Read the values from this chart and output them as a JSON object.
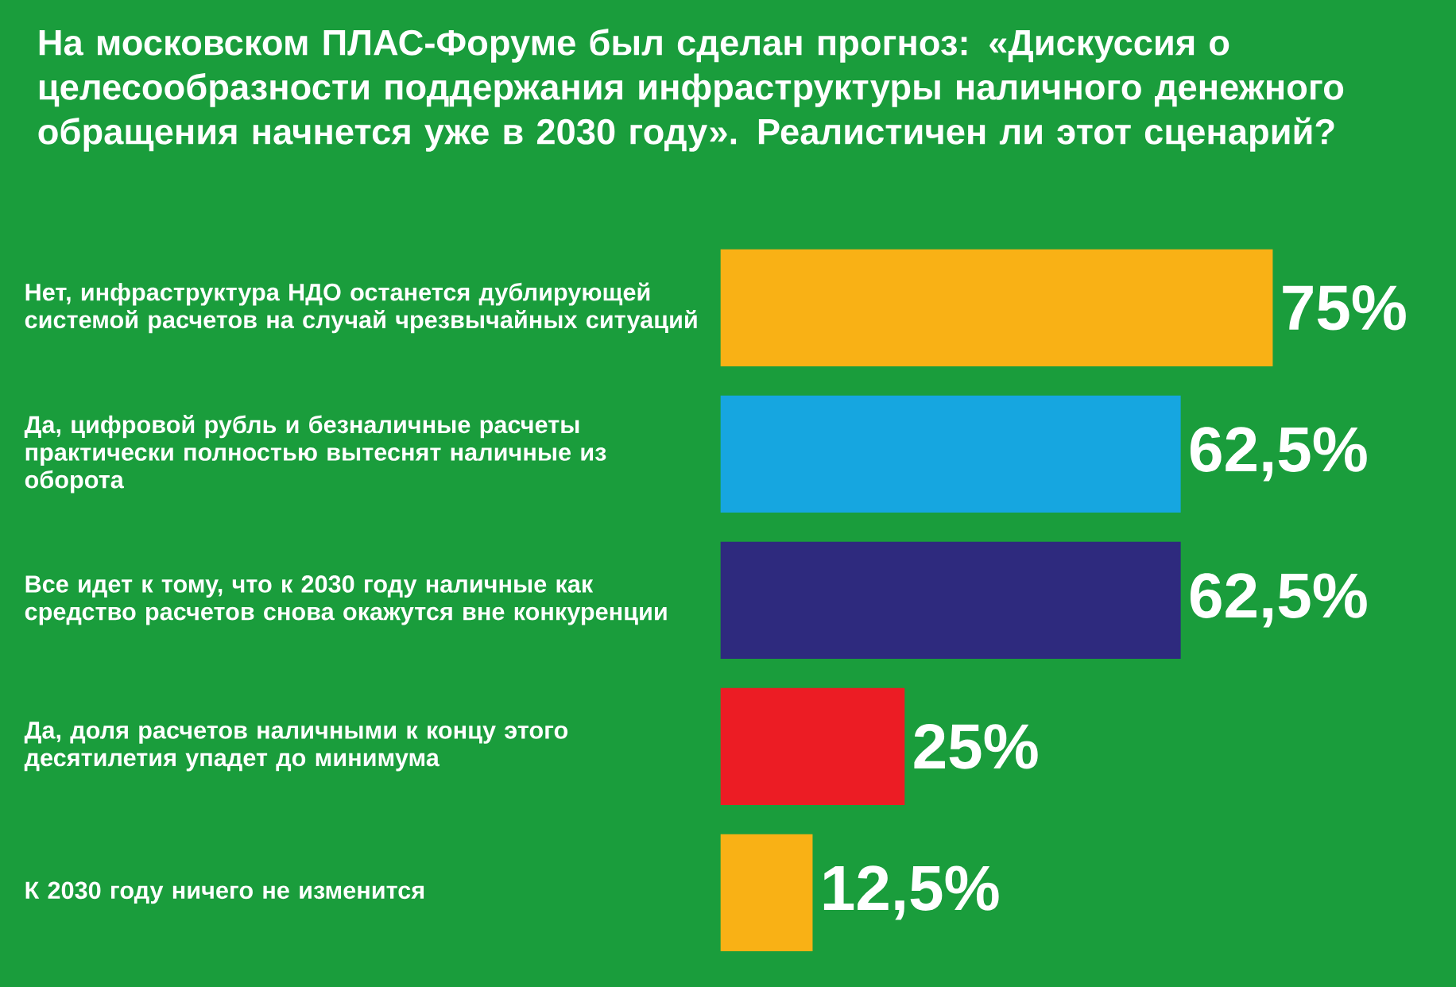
{
  "chart_data": {
    "type": "bar",
    "orientation": "horizontal",
    "title": "На московском ПЛАС-Форуме был сделан прогноз: «Дискуссия о целесообразности поддержания инфраструктуры наличного денежного обращения начнется уже в 2030 году». Реалистичен ли этот сценарий?",
    "categories": [
      "Нет, инфраструктура НДО останется дублирующей системой расчетов на случай чрезвычайных ситуаций",
      "Да, цифровой рубль и безналичные расчеты практически полностью вытеснят наличные из оборота",
      "Все идет к тому, что к 2030 году наличные как средство расчетов снова окажутся вне конкуренции",
      "Да, доля расчетов наличными к концу этого десятилетия упадет до минимума",
      "К 2030 году ничего не изменится"
    ],
    "values": [
      75,
      62.5,
      62.5,
      25,
      12.5
    ],
    "value_labels": [
      "75%",
      "62,5%",
      "62,5%",
      "25%",
      "12,5%"
    ],
    "colors": [
      "#f9b115",
      "#16a6e0",
      "#2e2a7e",
      "#ec1c24",
      "#f9b115"
    ]
  }
}
